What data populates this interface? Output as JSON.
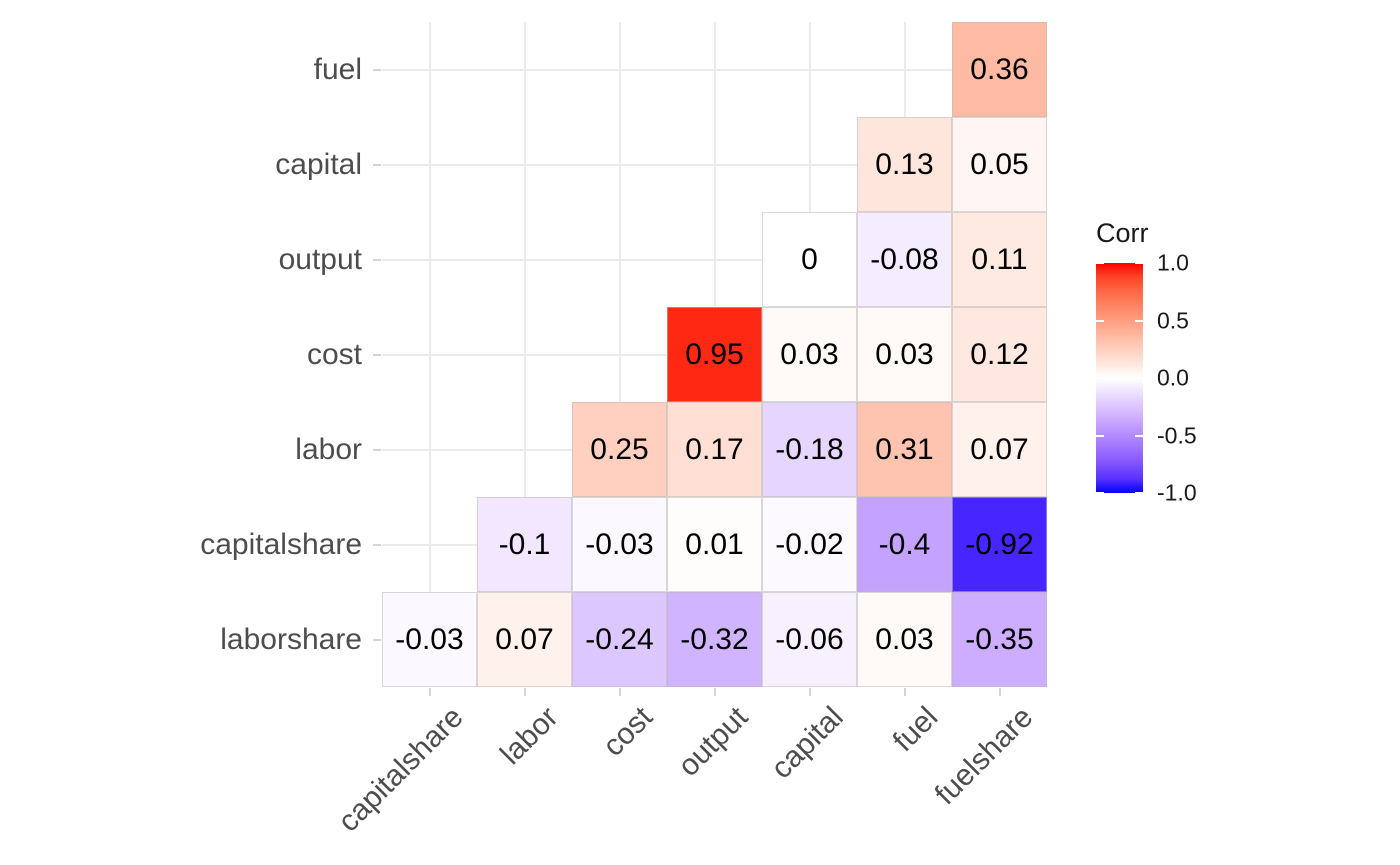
{
  "chart_data": {
    "type": "heatmap",
    "subtype": "correlation-matrix-upper-triangle",
    "y_categories": [
      "fuel",
      "capital",
      "output",
      "cost",
      "labor",
      "capitalshare",
      "laborshare"
    ],
    "x_categories": [
      "capitalshare",
      "labor",
      "cost",
      "output",
      "capital",
      "fuel",
      "fuelshare"
    ],
    "cells": [
      {
        "row": "fuel",
        "col": "fuelshare",
        "value": 0.36,
        "label": "0.36"
      },
      {
        "row": "capital",
        "col": "fuel",
        "value": 0.13,
        "label": "0.13"
      },
      {
        "row": "capital",
        "col": "fuelshare",
        "value": 0.05,
        "label": "0.05"
      },
      {
        "row": "output",
        "col": "capital",
        "value": 0,
        "label": "0"
      },
      {
        "row": "output",
        "col": "fuel",
        "value": -0.08,
        "label": "-0.08"
      },
      {
        "row": "output",
        "col": "fuelshare",
        "value": 0.11,
        "label": "0.11"
      },
      {
        "row": "cost",
        "col": "output",
        "value": 0.95,
        "label": "0.95"
      },
      {
        "row": "cost",
        "col": "capital",
        "value": 0.03,
        "label": "0.03"
      },
      {
        "row": "cost",
        "col": "fuel",
        "value": 0.03,
        "label": "0.03"
      },
      {
        "row": "cost",
        "col": "fuelshare",
        "value": 0.12,
        "label": "0.12"
      },
      {
        "row": "labor",
        "col": "cost",
        "value": 0.25,
        "label": "0.25"
      },
      {
        "row": "labor",
        "col": "output",
        "value": 0.17,
        "label": "0.17"
      },
      {
        "row": "labor",
        "col": "capital",
        "value": -0.18,
        "label": "-0.18"
      },
      {
        "row": "labor",
        "col": "fuel",
        "value": 0.31,
        "label": "0.31"
      },
      {
        "row": "labor",
        "col": "fuelshare",
        "value": 0.07,
        "label": "0.07"
      },
      {
        "row": "capitalshare",
        "col": "labor",
        "value": -0.1,
        "label": "-0.1"
      },
      {
        "row": "capitalshare",
        "col": "cost",
        "value": -0.03,
        "label": "-0.03"
      },
      {
        "row": "capitalshare",
        "col": "output",
        "value": 0.01,
        "label": "0.01"
      },
      {
        "row": "capitalshare",
        "col": "capital",
        "value": -0.02,
        "label": "-0.02"
      },
      {
        "row": "capitalshare",
        "col": "fuel",
        "value": -0.4,
        "label": "-0.4"
      },
      {
        "row": "capitalshare",
        "col": "fuelshare",
        "value": -0.92,
        "label": "-0.92"
      },
      {
        "row": "laborshare",
        "col": "capitalshare",
        "value": -0.03,
        "label": "-0.03"
      },
      {
        "row": "laborshare",
        "col": "labor",
        "value": 0.07,
        "label": "0.07"
      },
      {
        "row": "laborshare",
        "col": "cost",
        "value": -0.24,
        "label": "-0.24"
      },
      {
        "row": "laborshare",
        "col": "output",
        "value": -0.32,
        "label": "-0.32"
      },
      {
        "row": "laborshare",
        "col": "capital",
        "value": -0.06,
        "label": "-0.06"
      },
      {
        "row": "laborshare",
        "col": "fuel",
        "value": 0.03,
        "label": "0.03"
      },
      {
        "row": "laborshare",
        "col": "fuelshare",
        "value": -0.35,
        "label": "-0.35"
      }
    ],
    "legend": {
      "title": "Corr",
      "position": "right",
      "limits": [
        -1,
        1
      ],
      "tick_values": [
        1.0,
        0.5,
        0.0,
        -0.5,
        -1.0
      ],
      "tick_labels": [
        "1.0",
        "0.5",
        "0.0",
        "-0.5",
        "-1.0"
      ]
    },
    "colors": {
      "scale_low": "#0000FF",
      "scale_mid": "#FFFFFF",
      "scale_high": "#FF0000",
      "grid": "#EBEBEB",
      "axis_text": "#4D4D4D",
      "value_text": "#000000",
      "legend_text": "#1A1A1A",
      "tick": "#D4D4D4",
      "background": "#FFFFFF"
    },
    "grid": true,
    "axis_text_angle_x": 45
  }
}
